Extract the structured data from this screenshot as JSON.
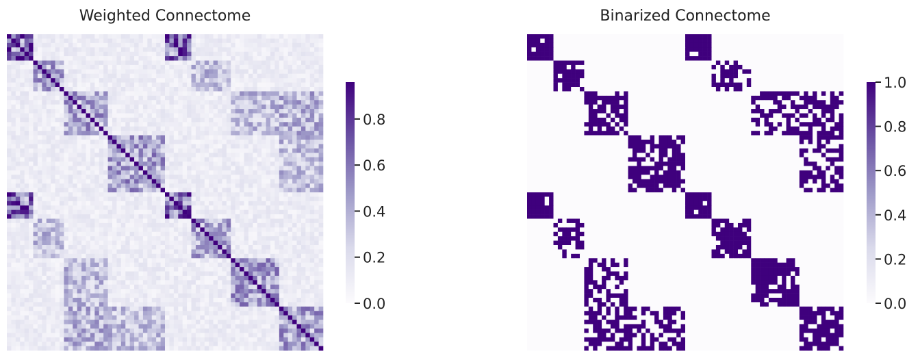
{
  "chart_data": [
    {
      "type": "heatmap",
      "title": "Weighted Connectome",
      "xlabel": "",
      "ylabel": "",
      "colormap": "Purples",
      "color_low": "#fcfbfd",
      "color_high": "#3f007d",
      "colorbar": {
        "ticks": [
          "0.0",
          "0.2",
          "0.4",
          "0.6",
          "0.8"
        ],
        "tick_values": [
          0.0,
          0.2,
          0.4,
          0.6,
          0.8
        ],
        "range": [
          0.0,
          0.96
        ]
      },
      "value_range": [
        0.0,
        0.96
      ],
      "block_structure": {
        "description_of_values": "symmetric matrix, stronger values inside diagonal blocks and mirrored hemisphere blocks",
        "blocks": [
          0.0,
          0.08,
          0.17,
          0.31,
          0.5,
          0.58,
          0.7,
          0.85,
          1.0
        ],
        "strong_blocks": [
          [
            0.0,
            0.08
          ],
          [
            0.34,
            0.47
          ],
          [
            0.5,
            0.58
          ],
          [
            0.84,
            1.0
          ]
        ]
      }
    },
    {
      "type": "heatmap",
      "title": "Binarized Connectome",
      "xlabel": "",
      "ylabel": "",
      "colormap": "Purples",
      "color_low": "#fcfbfd",
      "color_high": "#3f007d",
      "colorbar": {
        "ticks": [
          "0.0",
          "0.2",
          "0.4",
          "0.6",
          "0.8",
          "1.0"
        ],
        "tick_values": [
          0.0,
          0.2,
          0.4,
          0.6,
          0.8,
          1.0
        ],
        "range": [
          0.0,
          1.0
        ]
      },
      "value_range": [
        0.0,
        1.0
      ],
      "binary_values": [
        0,
        1
      ]
    }
  ]
}
